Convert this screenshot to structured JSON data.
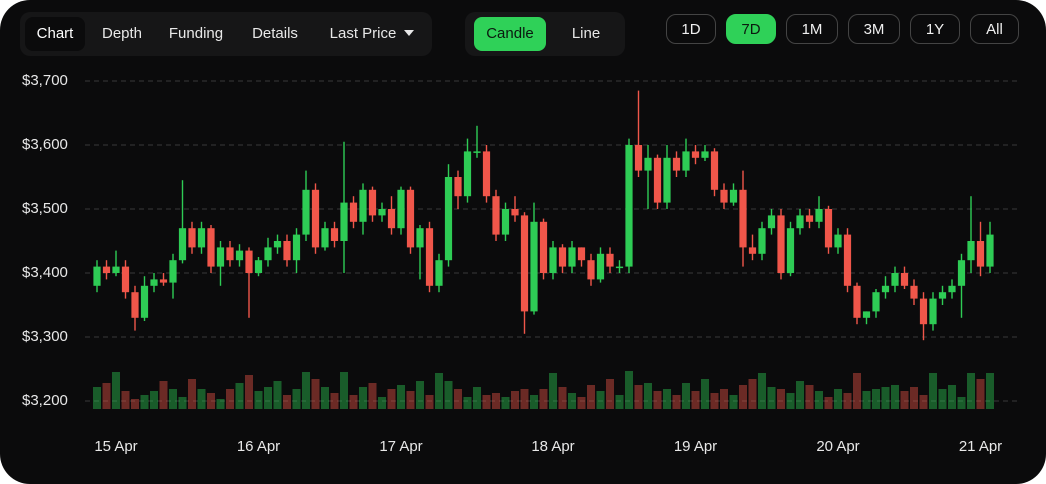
{
  "toolbar": {
    "tabs": [
      "Chart",
      "Depth",
      "Funding",
      "Details",
      "Last Price"
    ],
    "modes": [
      "Candle",
      "Line"
    ],
    "ranges": [
      "1D",
      "7D",
      "1M",
      "3M",
      "1Y",
      "All"
    ]
  },
  "chart_data": {
    "type": "candlestick",
    "up_color": "#2ecc55",
    "down_color": "#f0564a",
    "grid": true,
    "ylim": [
      3200,
      3700
    ],
    "yticks": [
      {
        "value": 3700,
        "label": "$3,700"
      },
      {
        "value": 3600,
        "label": "$3,600"
      },
      {
        "value": 3500,
        "label": "$3,500"
      },
      {
        "value": 3400,
        "label": "$3,400"
      },
      {
        "value": 3300,
        "label": "$3,300"
      },
      {
        "value": 3200,
        "label": "$3,200"
      }
    ],
    "categories": [
      null,
      null,
      "15 Apr",
      null,
      null,
      null,
      null,
      null,
      null,
      null,
      null,
      null,
      null,
      null,
      null,
      null,
      null,
      "16 Apr",
      null,
      null,
      null,
      null,
      null,
      null,
      null,
      null,
      null,
      null,
      null,
      null,
      null,
      null,
      "17 Apr",
      null,
      null,
      null,
      null,
      null,
      null,
      null,
      null,
      null,
      null,
      null,
      null,
      null,
      null,
      null,
      "18 Apr",
      null,
      null,
      null,
      null,
      null,
      null,
      null,
      null,
      null,
      null,
      null,
      null,
      null,
      null,
      "19 Apr",
      null,
      null,
      null,
      null,
      null,
      null,
      null,
      null,
      null,
      null,
      null,
      null,
      null,
      null,
      "20 Apr",
      null,
      null,
      null,
      null,
      null,
      null,
      null,
      null,
      null,
      null,
      null,
      null,
      null,
      null,
      "21 Apr",
      null
    ],
    "open": [
      3380,
      3410,
      3400,
      3410,
      3370,
      3330,
      3380,
      3390,
      3385,
      3420,
      3470,
      3440,
      3470,
      3410,
      3440,
      3420,
      3435,
      3400,
      3420,
      3440,
      3450,
      3420,
      3460,
      3530,
      3440,
      3470,
      3450,
      3510,
      3480,
      3530,
      3490,
      3500,
      3470,
      3530,
      3440,
      3470,
      3380,
      3420,
      3550,
      3520,
      3590,
      3590,
      3520,
      3460,
      3500,
      3490,
      3340,
      3480,
      3400,
      3440,
      3410,
      3440,
      3420,
      3390,
      3430,
      3410,
      3410,
      3600,
      3560,
      3580,
      3510,
      3580,
      3560,
      3590,
      3580,
      3590,
      3530,
      3510,
      3530,
      3440,
      3430,
      3470,
      3490,
      3400,
      3470,
      3490,
      3480,
      3500,
      3440,
      3460,
      3380,
      3330,
      3340,
      3370,
      3380,
      3400,
      3380,
      3360,
      3320,
      3360,
      3370,
      3380,
      3420,
      3450,
      3410
    ],
    "high": [
      3420,
      3420,
      3435,
      3420,
      3380,
      3395,
      3400,
      3400,
      3430,
      3545,
      3480,
      3480,
      3475,
      3450,
      3450,
      3445,
      3440,
      3425,
      3455,
      3460,
      3460,
      3470,
      3560,
      3540,
      3480,
      3480,
      3605,
      3520,
      3540,
      3535,
      3510,
      3520,
      3535,
      3535,
      3475,
      3480,
      3430,
      3570,
      3560,
      3610,
      3630,
      3600,
      3530,
      3510,
      3520,
      3495,
      3510,
      3485,
      3450,
      3445,
      3450,
      3440,
      3430,
      3440,
      3440,
      3420,
      3610,
      3685,
      3600,
      3585,
      3600,
      3590,
      3610,
      3600,
      3600,
      3595,
      3540,
      3540,
      3560,
      3460,
      3480,
      3500,
      3500,
      3480,
      3500,
      3500,
      3520,
      3505,
      3470,
      3470,
      3385,
      3340,
      3375,
      3395,
      3410,
      3410,
      3390,
      3370,
      3370,
      3380,
      3390,
      3430,
      3520,
      3480,
      3480
    ],
    "low": [
      3370,
      3390,
      3395,
      3360,
      3310,
      3325,
      3370,
      3380,
      3360,
      3415,
      3430,
      3430,
      3400,
      3380,
      3410,
      3410,
      3330,
      3395,
      3410,
      3430,
      3410,
      3400,
      3450,
      3430,
      3435,
      3440,
      3400,
      3470,
      3460,
      3480,
      3480,
      3460,
      3460,
      3430,
      3390,
      3370,
      3370,
      3410,
      3500,
      3510,
      3580,
      3510,
      3450,
      3450,
      3480,
      3305,
      3335,
      3390,
      3390,
      3400,
      3400,
      3410,
      3380,
      3385,
      3400,
      3400,
      3400,
      3550,
      3500,
      3500,
      3500,
      3550,
      3550,
      3570,
      3575,
      3520,
      3500,
      3505,
      3410,
      3420,
      3420,
      3460,
      3390,
      3395,
      3460,
      3470,
      3470,
      3430,
      3430,
      3370,
      3320,
      3320,
      3330,
      3360,
      3370,
      3375,
      3350,
      3295,
      3310,
      3350,
      3360,
      3330,
      3400,
      3395,
      3400
    ],
    "close": [
      3410,
      3400,
      3410,
      3370,
      3330,
      3380,
      3390,
      3385,
      3420,
      3470,
      3440,
      3470,
      3410,
      3440,
      3420,
      3435,
      3400,
      3420,
      3440,
      3450,
      3420,
      3460,
      3530,
      3440,
      3470,
      3450,
      3510,
      3480,
      3530,
      3490,
      3500,
      3470,
      3530,
      3440,
      3470,
      3380,
      3420,
      3550,
      3520,
      3590,
      3590,
      3520,
      3460,
      3500,
      3490,
      3340,
      3480,
      3400,
      3440,
      3410,
      3440,
      3420,
      3390,
      3430,
      3410,
      3410,
      3600,
      3560,
      3580,
      3510,
      3580,
      3560,
      3590,
      3580,
      3590,
      3530,
      3510,
      3530,
      3440,
      3430,
      3470,
      3490,
      3400,
      3470,
      3490,
      3480,
      3500,
      3440,
      3460,
      3380,
      3330,
      3340,
      3370,
      3380,
      3400,
      3380,
      3360,
      3320,
      3360,
      3370,
      3380,
      3420,
      3450,
      3410,
      3460
    ],
    "volume": [
      22,
      26,
      37,
      18,
      10,
      14,
      18,
      28,
      20,
      12,
      30,
      20,
      16,
      10,
      20,
      26,
      34,
      18,
      22,
      28,
      14,
      20,
      37,
      30,
      22,
      16,
      37,
      14,
      22,
      26,
      12,
      20,
      24,
      18,
      28,
      14,
      36,
      28,
      20,
      12,
      22,
      14,
      16,
      12,
      18,
      20,
      14,
      20,
      36,
      22,
      16,
      12,
      24,
      18,
      30,
      14,
      38,
      24,
      26,
      18,
      20,
      14,
      26,
      18,
      30,
      16,
      20,
      14,
      24,
      30,
      36,
      22,
      20,
      16,
      28,
      24,
      18,
      12,
      20,
      16,
      36,
      18,
      20,
      22,
      24,
      18,
      22,
      14,
      36,
      20,
      24,
      12,
      36,
      30,
      36
    ]
  }
}
